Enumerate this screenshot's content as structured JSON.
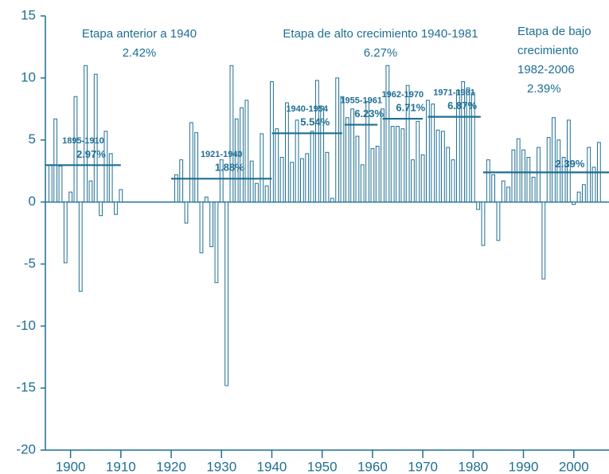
{
  "chart_data": {
    "type": "bar",
    "x": [
      1896,
      1897,
      1898,
      1899,
      1900,
      1901,
      1902,
      1903,
      1904,
      1905,
      1906,
      1907,
      1908,
      1909,
      1910,
      1921,
      1922,
      1923,
      1924,
      1925,
      1926,
      1927,
      1928,
      1929,
      1930,
      1931,
      1932,
      1933,
      1934,
      1935,
      1936,
      1937,
      1938,
      1939,
      1940,
      1941,
      1942,
      1943,
      1944,
      1945,
      1946,
      1947,
      1948,
      1949,
      1950,
      1951,
      1952,
      1953,
      1954,
      1955,
      1956,
      1957,
      1958,
      1959,
      1960,
      1961,
      1962,
      1963,
      1964,
      1965,
      1966,
      1967,
      1968,
      1969,
      1970,
      1971,
      1972,
      1973,
      1974,
      1975,
      1976,
      1977,
      1978,
      1979,
      1980,
      1981,
      1982,
      1983,
      1984,
      1985,
      1986,
      1987,
      1988,
      1989,
      1990,
      1991,
      1992,
      1993,
      1994,
      1995,
      1996,
      1997,
      1998,
      1999,
      2000,
      2001,
      2002,
      2003,
      2004,
      2005,
      2006
    ],
    "values": [
      3.0,
      6.7,
      2.9,
      -4.9,
      0.8,
      8.5,
      -7.2,
      11.0,
      1.7,
      10.3,
      -1.1,
      5.7,
      3.9,
      -1.0,
      1.0,
      2.2,
      3.4,
      -1.7,
      6.4,
      5.6,
      -4.1,
      0.4,
      -3.6,
      -6.5,
      3.4,
      -14.8,
      11.0,
      6.7,
      7.6,
      8.2,
      3.3,
      1.5,
      5.5,
      1.3,
      9.7,
      5.9,
      3.6,
      8.0,
      3.2,
      6.6,
      3.5,
      3.9,
      5.7,
      9.8,
      7.7,
      4.0,
      0.3,
      10.0,
      8.5,
      6.8,
      7.5,
      5.3,
      3.0,
      8.1,
      4.3,
      4.5,
      7.5,
      11.0,
      6.1,
      6.1,
      5.9,
      9.4,
      3.4,
      6.5,
      3.8,
      8.2,
      7.9,
      5.8,
      5.7,
      4.4,
      3.4,
      9.0,
      9.7,
      9.2,
      8.8,
      -0.6,
      -3.5,
      3.4,
      2.2,
      -3.1,
      1.7,
      1.2,
      4.2,
      5.1,
      4.2,
      3.6,
      2.0,
      4.4,
      -6.2,
      5.2,
      6.8,
      5.0,
      3.6,
      6.6,
      -0.2,
      0.8,
      1.4,
      4.4,
      2.8,
      4.8,
      0.0
    ],
    "color": "#1f6f93",
    "xlim": [
      1895,
      2007
    ],
    "xticks": [
      1900,
      1910,
      1920,
      1930,
      1940,
      1950,
      1960,
      1970,
      1980,
      1990,
      2000
    ],
    "ylim": [
      -20,
      15
    ],
    "yticks": [
      -20,
      -15,
      -10,
      -5,
      0,
      5,
      10,
      15
    ],
    "segments": [
      {
        "label": "1895-1910",
        "start": 1895,
        "end": 1910,
        "value": 2.97,
        "value_label": "2.97%"
      },
      {
        "label": "1921-1940",
        "start": 1920,
        "end": 1940,
        "value": 1.88,
        "value_label": "1.88%"
      },
      {
        "label": "1940-1954",
        "start": 1940,
        "end": 1954,
        "value": 5.54,
        "value_label": "5.54%"
      },
      {
        "label": "1955-1961",
        "start": 1954.5,
        "end": 1961,
        "value": 6.23,
        "value_label": "6.23%"
      },
      {
        "label": "1962-1970",
        "start": 1962,
        "end": 1970,
        "value": 6.71,
        "value_label": "6.71%"
      },
      {
        "label": "1971-1981",
        "start": 1971,
        "end": 1981.5,
        "value": 6.87,
        "value_label": "6.87%"
      },
      {
        "start": 1982,
        "end": 2007,
        "value": 2.39,
        "value_label": "2.39%"
      }
    ],
    "stages": [
      {
        "lines": [
          "Etapa anterior a 1940",
          "2.42%"
        ]
      },
      {
        "lines": [
          "Etapa de alto crecimiento 1940-1981",
          "6.27%"
        ]
      },
      {
        "lines": [
          "Etapa de bajo",
          "crecimiento",
          "1982-2006",
          "2.39%"
        ]
      }
    ]
  }
}
